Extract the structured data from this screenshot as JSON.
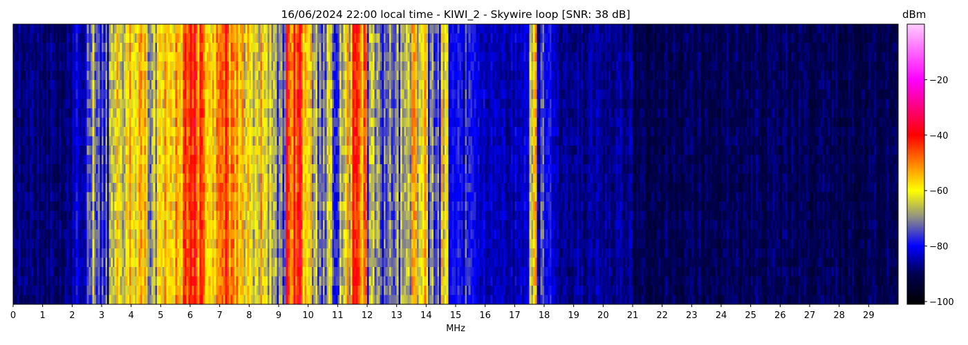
{
  "chart_data": {
    "type": "heatmap",
    "title": "16/06/2024 22:00 local time - KIWI_2 - Skywire loop [SNR: 38 dB]",
    "xlabel": "MHz",
    "ylabel": "",
    "xlim": [
      0,
      30
    ],
    "xticks": [
      0,
      1,
      2,
      3,
      4,
      5,
      6,
      7,
      8,
      9,
      10,
      11,
      12,
      13,
      14,
      15,
      16,
      17,
      18,
      19,
      20,
      21,
      22,
      23,
      24,
      25,
      26,
      27,
      28,
      29
    ],
    "colorbar": {
      "label": "dBm",
      "range": [
        -101,
        0
      ],
      "ticks": [
        -20,
        -40,
        -60,
        -80,
        -100
      ],
      "colormap_stops": [
        {
          "value": -101,
          "color": "#000000"
        },
        {
          "value": -90,
          "color": "#000050"
        },
        {
          "value": -80,
          "color": "#0000ff"
        },
        {
          "value": -70,
          "color": "#8a8a8a"
        },
        {
          "value": -60,
          "color": "#ffff00"
        },
        {
          "value": -50,
          "color": "#ff8000"
        },
        {
          "value": -40,
          "color": "#ff0000"
        },
        {
          "value": -20,
          "color": "#ff00ff"
        },
        {
          "value": 0,
          "color": "#ffccff"
        }
      ]
    },
    "bin_width_mhz": 0.25,
    "mean_level_dbm_per_bin": [
      -88,
      -88,
      -88,
      -88,
      -88,
      -88,
      -88,
      -88,
      -82,
      -84,
      -66,
      -79,
      -78,
      -72,
      -62,
      -58,
      -62,
      -56,
      -68,
      -66,
      -60,
      -58,
      -56,
      -46,
      -44,
      -48,
      -56,
      -54,
      -46,
      -48,
      -52,
      -60,
      -64,
      -58,
      -60,
      -72,
      -70,
      -46,
      -42,
      -52,
      -62,
      -68,
      -70,
      -70,
      -68,
      -60,
      -46,
      -50,
      -70,
      -72,
      -74,
      -74,
      -72,
      -64,
      -60,
      -58,
      -72,
      -76,
      -62,
      -80,
      -80,
      -78,
      -80,
      -82,
      -84,
      -84,
      -84,
      -84,
      -84,
      -84,
      -58,
      -78,
      -80,
      -84,
      -86,
      -86,
      -86,
      -86,
      -86,
      -86,
      -86,
      -86,
      -86,
      -86,
      -90,
      -90,
      -90,
      -90,
      -90,
      -90,
      -90,
      -90,
      -90,
      -90,
      -90,
      -90,
      -90,
      -90,
      -90,
      -90,
      -90,
      -90,
      -90,
      -90,
      -90,
      -90,
      -90,
      -90,
      -90,
      -90,
      -90,
      -90,
      -90,
      -90,
      -90,
      -90,
      -90,
      -90,
      -90,
      -90
    ]
  }
}
